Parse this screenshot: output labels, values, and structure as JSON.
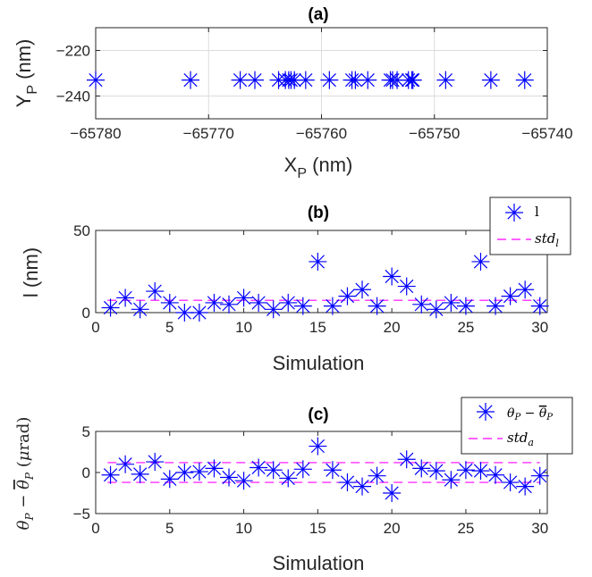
{
  "chart_data": [
    {
      "type": "scatter",
      "title": "(a)",
      "xlabel": "X",
      "xlabel_sub": "P",
      "xlabel_unit": " (nm)",
      "ylabel": "Y",
      "ylabel_sub": "P",
      "ylabel_unit": " (nm)",
      "xlim": [
        -65780,
        -65740
      ],
      "ylim": [
        -250,
        -210
      ],
      "xticks": [
        -65780,
        -65770,
        -65760,
        -65750,
        -65740
      ],
      "yticks": [
        -220,
        -240
      ],
      "grid": true,
      "colors": {
        "marker": "#0000ff"
      },
      "x": [
        -65780,
        -65771.6,
        -65767.2,
        -65765.9,
        -65763.8,
        -65763.2,
        -65762.9,
        -65762.7,
        -65762.4,
        -65761.4,
        -65759.3,
        -65757.3,
        -65757.0,
        -65755.9,
        -65753.9,
        -65753.7,
        -65753.3,
        -65752.3,
        -65752.0,
        -65751.9,
        -65749.0,
        -65745.0,
        -65742.0
      ],
      "y": [
        -233,
        -233,
        -233,
        -233,
        -233,
        -233,
        -233,
        -233,
        -233,
        -233,
        -233,
        -233,
        -233,
        -233,
        -233,
        -233,
        -233,
        -233,
        -233,
        -233,
        -233,
        -233,
        -233
      ]
    },
    {
      "type": "scatter",
      "title": "(b)",
      "xlabel": "Simulation",
      "ylabel": "l (nm)",
      "xlim": [
        0,
        30.5
      ],
      "ylim": [
        0,
        50
      ],
      "xticks": [
        0,
        5,
        10,
        15,
        20,
        25,
        30
      ],
      "yticks": [
        0,
        50
      ],
      "grid": false,
      "legend": {
        "position": "top-right",
        "entries": [
          "l",
          "std_l"
        ]
      },
      "colors": {
        "marker": "#0000ff",
        "std": "#ff00ff"
      },
      "x": [
        1,
        2,
        3,
        4,
        5,
        6,
        7,
        8,
        9,
        10,
        11,
        12,
        13,
        14,
        15,
        16,
        17,
        18,
        19,
        20,
        21,
        22,
        23,
        24,
        25,
        26,
        27,
        28,
        29,
        30
      ],
      "y": [
        3,
        9,
        2,
        13,
        6,
        0,
        0,
        6,
        5,
        9,
        6,
        2,
        6,
        4,
        31,
        4,
        10,
        14,
        4,
        22,
        16,
        5,
        2,
        6,
        4,
        31,
        4,
        10,
        14,
        4
      ],
      "std_lines": [
        7.5
      ]
    },
    {
      "type": "scatter",
      "title": "(c)",
      "xlabel": "Simulation",
      "ylabel": "θ_P − mean(θ_P) (μrad)",
      "xlim": [
        0,
        30.5
      ],
      "ylim": [
        -5,
        5
      ],
      "xticks": [
        0,
        5,
        10,
        15,
        20,
        25,
        30
      ],
      "yticks": [
        5,
        0,
        -5
      ],
      "grid": false,
      "legend": {
        "position": "top-right",
        "entries": [
          "θ_P − mean(θ_P)",
          "std_a"
        ]
      },
      "colors": {
        "marker": "#0000ff",
        "std": "#ff00ff"
      },
      "x": [
        1,
        2,
        3,
        4,
        5,
        6,
        7,
        8,
        9,
        10,
        11,
        12,
        13,
        14,
        15,
        16,
        17,
        18,
        19,
        20,
        21,
        22,
        23,
        24,
        25,
        26,
        27,
        28,
        29,
        30
      ],
      "y": [
        -0.3,
        1.0,
        -0.2,
        1.3,
        -0.8,
        0.0,
        0.1,
        0.5,
        -0.6,
        -1.0,
        0.6,
        0.3,
        -0.7,
        0.4,
        3.2,
        0.3,
        -1.2,
        -1.7,
        -0.4,
        -2.5,
        1.6,
        0.5,
        0.2,
        -0.9,
        0.3,
        0.2,
        -0.3,
        -1.2,
        -1.7,
        -0.4
      ],
      "std_lines": [
        1.2,
        -1.2
      ]
    }
  ]
}
